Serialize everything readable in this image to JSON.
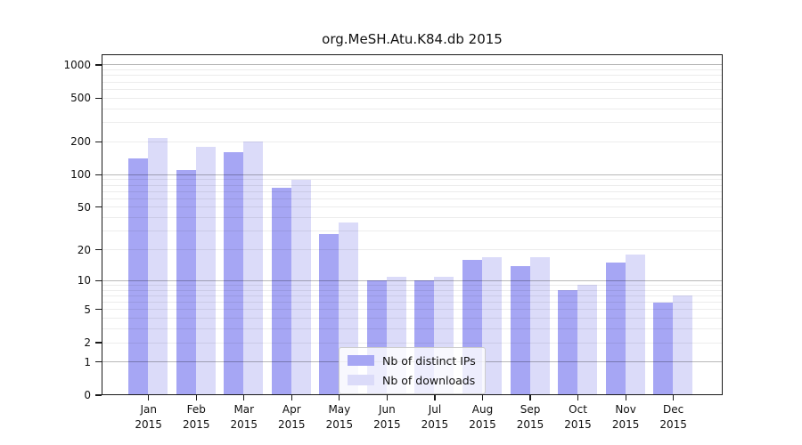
{
  "chart": {
    "title": "org.MeSH.Atu.K84.db 2015"
  },
  "chart_data": {
    "type": "bar",
    "title": "org.MeSH.Atu.K84.db 2015",
    "categories": [
      "Jan",
      "Feb",
      "Mar",
      "Apr",
      "May",
      "Jun",
      "Jul",
      "Aug",
      "Sep",
      "Oct",
      "Nov",
      "Dec"
    ],
    "x_year": "2015",
    "series": [
      {
        "name": "Nb of distinct IPs",
        "color": "#a6a6f4",
        "values": [
          140,
          110,
          160,
          75,
          28,
          10,
          10,
          16,
          14,
          8,
          15,
          6
        ]
      },
      {
        "name": "Nb of downloads",
        "color": "#dbdbf9",
        "values": [
          215,
          180,
          200,
          90,
          36,
          11,
          11,
          17,
          17,
          9,
          18,
          7
        ]
      }
    ],
    "y_scale": "log1p",
    "ylim": [
      0,
      1200
    ],
    "y_ticks": [
      0,
      1,
      2,
      5,
      10,
      20,
      50,
      100,
      200,
      500,
      1000
    ],
    "grid_major_values": [
      1,
      10,
      100,
      1000
    ],
    "grid_minor_values": [
      2,
      3,
      4,
      5,
      6,
      7,
      8,
      9,
      20,
      30,
      40,
      50,
      60,
      70,
      80,
      90,
      200,
      300,
      400,
      500,
      600,
      700,
      800,
      900
    ],
    "grid": true,
    "legend_position": "lower-center-inside",
    "axis_color": "#1a1a1a"
  }
}
